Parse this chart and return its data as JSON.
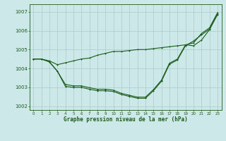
{
  "xlabel": "Graphe pression niveau de la mer (hPa)",
  "ylim": [
    1001.8,
    1007.4
  ],
  "xlim": [
    -0.5,
    23.5
  ],
  "yticks": [
    1002,
    1003,
    1004,
    1005,
    1006,
    1007
  ],
  "xticks": [
    0,
    1,
    2,
    3,
    4,
    5,
    6,
    7,
    8,
    9,
    10,
    11,
    12,
    13,
    14,
    15,
    16,
    17,
    18,
    19,
    20,
    21,
    22,
    23
  ],
  "bg_color": "#cde8e8",
  "grid_color": "#aacccc",
  "line_color": "#1a5c1a",
  "line1": [
    1004.5,
    1004.5,
    1004.4,
    1004.2,
    1004.3,
    1004.4,
    1004.5,
    1004.55,
    1004.7,
    1004.8,
    1004.9,
    1004.9,
    1004.95,
    1005.0,
    1005.0,
    1005.05,
    1005.1,
    1005.15,
    1005.2,
    1005.25,
    1005.2,
    1005.5,
    1006.05,
    1006.85
  ],
  "line2": [
    1004.5,
    1004.5,
    1004.35,
    1003.85,
    1003.05,
    1003.0,
    1003.0,
    1002.9,
    1002.82,
    1002.82,
    1002.78,
    1002.62,
    1002.52,
    1002.42,
    1002.42,
    1002.82,
    1003.32,
    1004.22,
    1004.45,
    1005.2,
    1005.45,
    1005.78,
    1006.08,
    1006.88
  ],
  "line3": [
    1004.5,
    1004.5,
    1004.35,
    1003.85,
    1003.15,
    1003.08,
    1003.08,
    1002.98,
    1002.9,
    1002.9,
    1002.85,
    1002.68,
    1002.58,
    1002.48,
    1002.48,
    1002.88,
    1003.38,
    1004.28,
    1004.5,
    1005.25,
    1005.35,
    1005.85,
    1006.15,
    1006.95
  ]
}
